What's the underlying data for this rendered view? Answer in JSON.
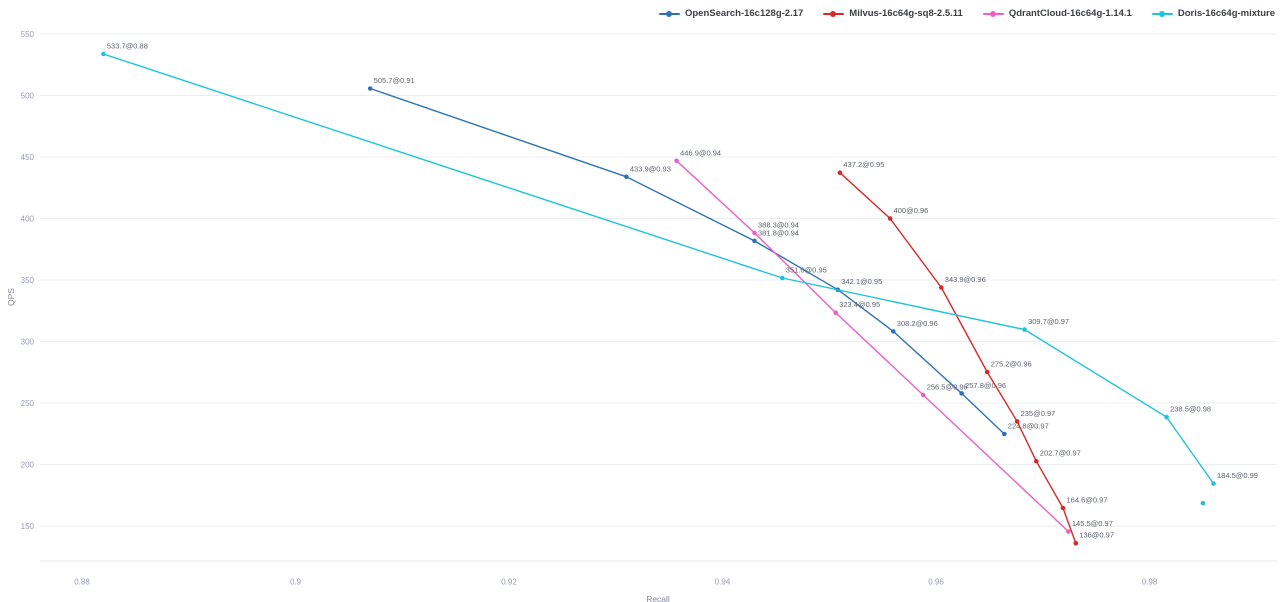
{
  "chart_data": {
    "type": "line",
    "title": "",
    "xlabel": "Recall",
    "ylabel": "QPS",
    "xlim": [
      0.876,
      0.992
    ],
    "ylim": [
      121,
      556
    ],
    "grid": true,
    "legend_position": "top-right",
    "x_ticks": [
      0.88,
      0.9,
      0.92,
      0.94,
      0.96,
      0.98
    ],
    "x_tick_labels": [
      "0.88",
      "0.9",
      "0.92",
      "0.94",
      "0.96",
      "0.98"
    ],
    "y_ticks": [
      150,
      200,
      250,
      300,
      350,
      400,
      450,
      500,
      550
    ],
    "series": [
      {
        "name": "OpenSearch-16c128g-2.17",
        "color": "#2E72B5",
        "points": [
          {
            "recall": 0.907,
            "qps": 505.7,
            "label": "505.7@0.91"
          },
          {
            "recall": 0.931,
            "qps": 433.9,
            "label": "433.9@0.93"
          },
          {
            "recall": 0.943,
            "qps": 381.8,
            "label": "381.8@0.94"
          },
          {
            "recall": 0.9508,
            "qps": 342.1,
            "label": "342.1@0.95"
          },
          {
            "recall": 0.956,
            "qps": 308.2,
            "label": "308.2@0.96"
          },
          {
            "recall": 0.9624,
            "qps": 257.8,
            "label": "257.8@0.96"
          },
          {
            "recall": 0.9664,
            "qps": 224.8,
            "label": "224.8@0.97"
          }
        ]
      },
      {
        "name": "Milvus-16c64g-sq8-2.5.11",
        "color": "#D62A28",
        "points": [
          {
            "recall": 0.951,
            "qps": 437.2,
            "label": "437.2@0.95"
          },
          {
            "recall": 0.9557,
            "qps": 400,
            "label": "400@0.96"
          },
          {
            "recall": 0.9605,
            "qps": 343.9,
            "label": "343.9@0.96"
          },
          {
            "recall": 0.9648,
            "qps": 275.2,
            "label": "275.2@0.96"
          },
          {
            "recall": 0.9676,
            "qps": 235,
            "label": "235@0.97"
          },
          {
            "recall": 0.9694,
            "qps": 202.7,
            "label": "202.7@0.97"
          },
          {
            "recall": 0.9719,
            "qps": 164.6,
            "label": "164.6@0.97"
          },
          {
            "recall": 0.9731,
            "qps": 136,
            "label": "136@0.97"
          }
        ]
      },
      {
        "name": "QdrantCloud-16c64g-1.14.1",
        "color": "#ED5FC4",
        "points": [
          {
            "recall": 0.9357,
            "qps": 446.9,
            "label": "446.9@0.94"
          },
          {
            "recall": 0.943,
            "qps": 388.3,
            "label": "388.3@0.94"
          },
          {
            "recall": 0.9506,
            "qps": 323.4,
            "label": "323.4@0.95"
          },
          {
            "recall": 0.9588,
            "qps": 256.5,
            "label": "256.5@0.96"
          },
          {
            "recall": 0.9724,
            "qps": 145.5,
            "label": "145.5@0.97"
          }
        ]
      },
      {
        "name": "Doris-16c64g-mixture",
        "color": "#1FC4D6",
        "points": [
          {
            "recall": 0.882,
            "qps": 533.7,
            "label": "533.7@0.88"
          },
          {
            "recall": 0.9456,
            "qps": 351.6,
            "label": "351.6@0.95"
          },
          {
            "recall": 0.9683,
            "qps": 309.7,
            "label": "309.7@0.97"
          },
          {
            "recall": 0.9816,
            "qps": 238.5,
            "label": "238.5@0.98"
          },
          {
            "recall": 0.986,
            "qps": 184.5,
            "label": "184.5@0.99"
          }
        ]
      }
    ],
    "unlabeled_points": [
      {
        "series": "Doris-16c64g-mixture",
        "color": "#1FC4D6",
        "recall": 0.985,
        "qps": 168.5
      }
    ]
  },
  "colors": {
    "gridline": "#EBEDF1",
    "axis_line": "#E6E9EE",
    "tick_label": "#989dad",
    "point_label": "#5e636e",
    "background": "#ffffff"
  }
}
